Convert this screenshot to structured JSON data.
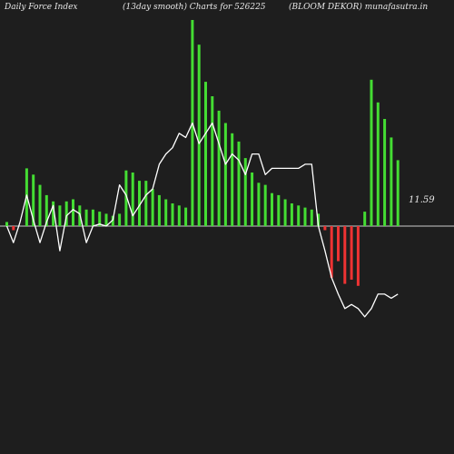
{
  "header": {
    "left": "Daily Force  Index",
    "middle": "(13day smooth) Charts for 526225",
    "right": "(BLOOM DEKOR) munafasutra.in"
  },
  "colors": {
    "background": "#1e1e1e",
    "positive_bar": "#44dd33",
    "negative_bar": "#ee3333",
    "line": "#ffffff",
    "zero_line": "#cccccc"
  },
  "chart_data": {
    "type": "bar",
    "title": "Daily Force Index (13day smooth)",
    "zero_line": true,
    "y_range": [
      -100,
      100
    ],
    "last_value_label": "11.59",
    "bars": [
      2,
      -2,
      0,
      28,
      25,
      20,
      15,
      12,
      10,
      12,
      13,
      10,
      8,
      8,
      7,
      6,
      5,
      6,
      27,
      26,
      22,
      22,
      18,
      15,
      13,
      11,
      10,
      9,
      100,
      88,
      70,
      63,
      56,
      50,
      45,
      41,
      33,
      26,
      21,
      20,
      16,
      15,
      13,
      11,
      10,
      9,
      8,
      6,
      -2,
      -25,
      -17,
      -28,
      -26,
      -29,
      7,
      71,
      60,
      52,
      43,
      32
    ],
    "smooth_line": [
      0,
      -8,
      2,
      15,
      3,
      -8,
      2,
      10,
      -12,
      5,
      8,
      6,
      -8,
      0,
      1,
      0,
      3,
      20,
      15,
      5,
      10,
      15,
      18,
      30,
      35,
      38,
      45,
      43,
      50,
      40,
      45,
      50,
      40,
      30,
      35,
      32,
      25,
      35,
      35,
      25,
      28,
      28,
      28,
      28,
      28,
      30,
      30,
      0,
      -12,
      -25,
      -33,
      -40,
      -38,
      -40,
      -44,
      -40,
      -33,
      -33,
      -35,
      -33
    ]
  }
}
